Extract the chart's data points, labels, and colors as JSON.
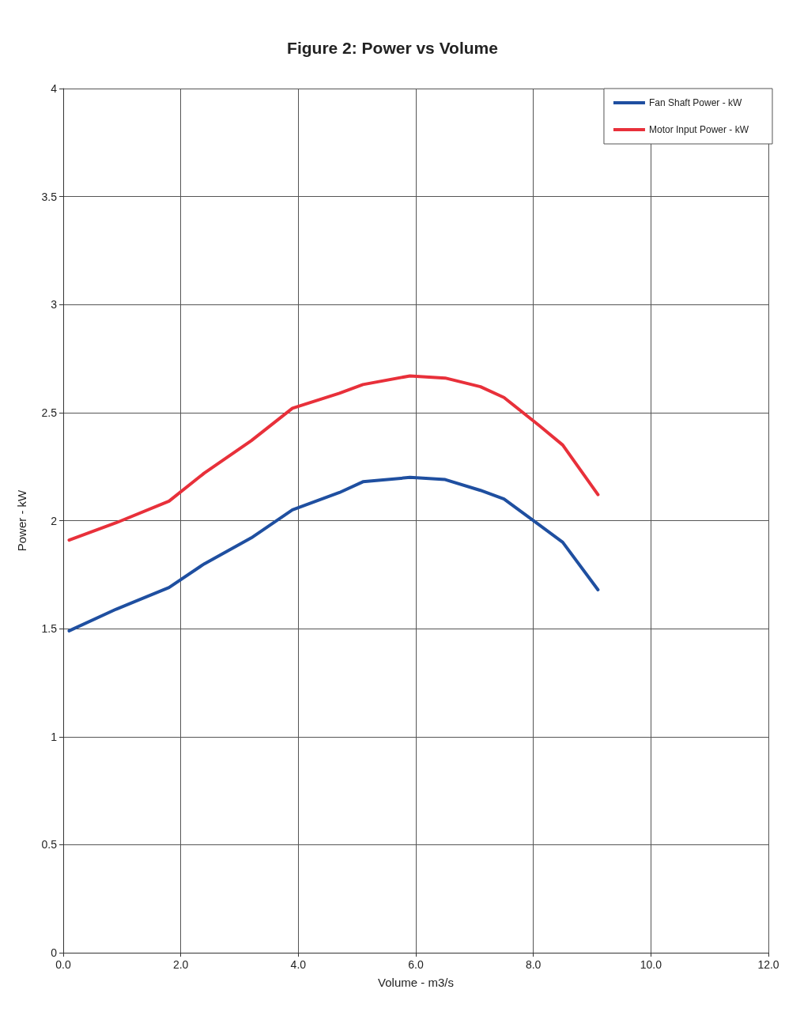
{
  "chart_data": {
    "type": "line",
    "title": "Figure 2: Power vs Volume",
    "xlabel": "Volume - m3/s",
    "ylabel": "Power - kW",
    "xlim": [
      0,
      12
    ],
    "xticks": [
      {
        "value": 0,
        "label": "0.0"
      },
      {
        "value": 2,
        "label": "2.0"
      },
      {
        "value": 4,
        "label": "4.0"
      },
      {
        "value": 6,
        "label": "6.0"
      },
      {
        "value": 8,
        "label": "8.0"
      },
      {
        "value": 10,
        "label": "10.0"
      },
      {
        "value": 12,
        "label": "12.0"
      }
    ],
    "ylim": [
      0,
      4
    ],
    "yticks": [
      0,
      0.5,
      1,
      1.5,
      2,
      2.5,
      3,
      3.5,
      4
    ],
    "grid": true,
    "legend": "top right",
    "marker": "none",
    "line_style": "solid",
    "x": [
      0.1,
      0.9,
      1.8,
      2.4,
      3.2,
      3.9,
      4.7,
      5.1,
      5.9,
      6.5,
      7.1,
      7.5,
      8.1,
      8.5,
      9.1
    ],
    "series": [
      {
        "name": "Fan Shaft Power - kW",
        "color": "#1f4fa0",
        "values": [
          1.49,
          1.59,
          1.69,
          1.8,
          1.92,
          2.05,
          2.13,
          2.18,
          2.2,
          2.19,
          2.14,
          2.1,
          1.98,
          1.9,
          1.68
        ]
      },
      {
        "name": "Motor Input Power - kW",
        "color": "#e8303a",
        "values": [
          1.91,
          1.99,
          2.09,
          2.22,
          2.37,
          2.52,
          2.59,
          2.63,
          2.67,
          2.66,
          2.62,
          2.57,
          2.44,
          2.35,
          2.12
        ]
      }
    ]
  }
}
